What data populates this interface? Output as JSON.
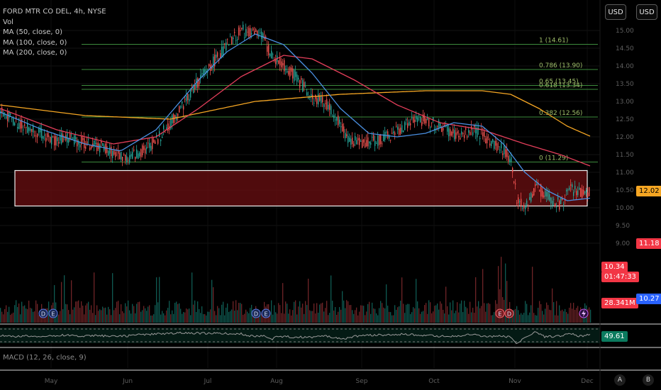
{
  "legend": {
    "symbol": "FORD MTR CO DEL, 4h, NYSE",
    "vol": "Vol",
    "ma50": "MA (50, close, 0)",
    "ma100": "MA (100, close, 0)",
    "ma200": "MA (200, close, 0)"
  },
  "currency": [
    "USD",
    "USD"
  ],
  "price_tags": {
    "ma200": "12.02",
    "ma100": "11.18",
    "last_price": "10.34",
    "countdown": "01:47:33",
    "volume": "28.341M",
    "ma50": "10.27",
    "rsi": "49.61"
  },
  "macd_label": "MACD (12, 26, close, 9)",
  "controls": [
    "A",
    "B"
  ],
  "colors": {
    "up": "#26a69a",
    "down": "#ef5350",
    "ma50": "#4a90e2",
    "ma100": "#e33e5a",
    "ma200": "#f5a623",
    "fib": "#3d8b3d",
    "zone_fill": "#6b0f12",
    "tag_red": "#f23645",
    "tag_blue": "#2962ff",
    "tag_amber": "#f5a623",
    "tag_green": "#0b7a5e"
  },
  "chart_data": {
    "type": "candlestick",
    "y_ticks": [
      "15.00",
      "14.50",
      "14.00",
      "13.50",
      "13.00",
      "12.50",
      "12.00",
      "11.50",
      "11.00",
      "10.50",
      "10.00",
      "9.50",
      "9.00"
    ],
    "x_labels": [
      "May",
      "Jun",
      "Jul",
      "Aug",
      "Sep",
      "Oct",
      "Nov",
      "Dec"
    ],
    "fib_levels": [
      {
        "ratio": "1",
        "price": 14.61,
        "label": "1 (14.61)"
      },
      {
        "ratio": "0.786",
        "price": 13.9,
        "label": "0.786 (13.90)"
      },
      {
        "ratio": "0.65",
        "price": 13.45,
        "label": "0.65 (13.45)"
      },
      {
        "ratio": "0.618",
        "price": 13.34,
        "label": "0.618 (13.34)"
      },
      {
        "ratio": "0.382",
        "price": 12.56,
        "label": "0.382 (12.56)"
      },
      {
        "ratio": "0",
        "price": 11.29,
        "label": "0 (11.29)"
      }
    ],
    "zone": {
      "top": 11.05,
      "bottom": 10.05
    },
    "event_markers": [
      {
        "letter": "D",
        "date": "Apr 30"
      },
      {
        "letter": "E",
        "date": "May 3"
      },
      {
        "letter": "D",
        "date": "Jul 28"
      },
      {
        "letter": "E",
        "date": "Jul 31"
      },
      {
        "letter": "E",
        "date": "Oct 27"
      },
      {
        "letter": "D",
        "date": "Oct 29"
      }
    ],
    "close_path": [
      [
        0,
        12.7
      ],
      [
        12,
        12.4
      ],
      [
        24,
        12.2
      ],
      [
        36,
        11.9
      ],
      [
        48,
        12.0
      ],
      [
        60,
        11.8
      ],
      [
        72,
        11.7
      ],
      [
        82,
        11.5
      ],
      [
        90,
        11.4
      ],
      [
        100,
        11.6
      ],
      [
        110,
        11.9
      ],
      [
        120,
        12.4
      ],
      [
        130,
        13.0
      ],
      [
        140,
        13.6
      ],
      [
        150,
        14.1
      ],
      [
        160,
        14.6
      ],
      [
        170,
        15.0
      ],
      [
        178,
        14.9
      ],
      [
        186,
        14.8
      ],
      [
        190,
        14.3
      ],
      [
        200,
        14.0
      ],
      [
        210,
        13.6
      ],
      [
        220,
        13.1
      ],
      [
        228,
        13.0
      ],
      [
        236,
        12.6
      ],
      [
        244,
        12.0
      ],
      [
        254,
        11.8
      ],
      [
        264,
        11.9
      ],
      [
        274,
        12.0
      ],
      [
        284,
        12.3
      ],
      [
        294,
        12.5
      ],
      [
        304,
        12.4
      ],
      [
        314,
        12.2
      ],
      [
        324,
        12.0
      ],
      [
        334,
        12.2
      ],
      [
        344,
        11.9
      ],
      [
        352,
        11.7
      ],
      [
        360,
        11.4
      ],
      [
        364,
        10.3
      ],
      [
        370,
        10.0
      ],
      [
        378,
        10.6
      ],
      [
        386,
        10.3
      ],
      [
        394,
        10.1
      ],
      [
        402,
        10.5
      ],
      [
        410,
        10.4
      ],
      [
        416,
        10.5
      ]
    ],
    "ma50_path": [
      [
        0,
        12.7
      ],
      [
        30,
        12.2
      ],
      [
        60,
        11.8
      ],
      [
        85,
        11.6
      ],
      [
        110,
        12.2
      ],
      [
        140,
        13.6
      ],
      [
        160,
        14.4
      ],
      [
        180,
        14.9
      ],
      [
        200,
        14.6
      ],
      [
        220,
        13.8
      ],
      [
        240,
        12.8
      ],
      [
        260,
        12.1
      ],
      [
        280,
        12.0
      ],
      [
        300,
        12.1
      ],
      [
        320,
        12.4
      ],
      [
        340,
        12.3
      ],
      [
        355,
        11.8
      ],
      [
        370,
        11.0
      ],
      [
        385,
        10.5
      ],
      [
        400,
        10.2
      ],
      [
        416,
        10.27
      ]
    ],
    "ma100_path": [
      [
        0,
        12.8
      ],
      [
        40,
        12.2
      ],
      [
        80,
        11.8
      ],
      [
        110,
        12.0
      ],
      [
        140,
        12.8
      ],
      [
        170,
        13.7
      ],
      [
        200,
        14.3
      ],
      [
        220,
        14.2
      ],
      [
        250,
        13.6
      ],
      [
        280,
        12.9
      ],
      [
        310,
        12.4
      ],
      [
        340,
        12.2
      ],
      [
        370,
        11.8
      ],
      [
        395,
        11.5
      ],
      [
        416,
        11.18
      ]
    ],
    "ma200_path": [
      [
        0,
        12.9
      ],
      [
        60,
        12.6
      ],
      [
        120,
        12.5
      ],
      [
        180,
        13.0
      ],
      [
        240,
        13.2
      ],
      [
        300,
        13.3
      ],
      [
        340,
        13.3
      ],
      [
        360,
        13.2
      ],
      [
        380,
        12.8
      ],
      [
        400,
        12.3
      ],
      [
        416,
        12.02
      ]
    ]
  }
}
